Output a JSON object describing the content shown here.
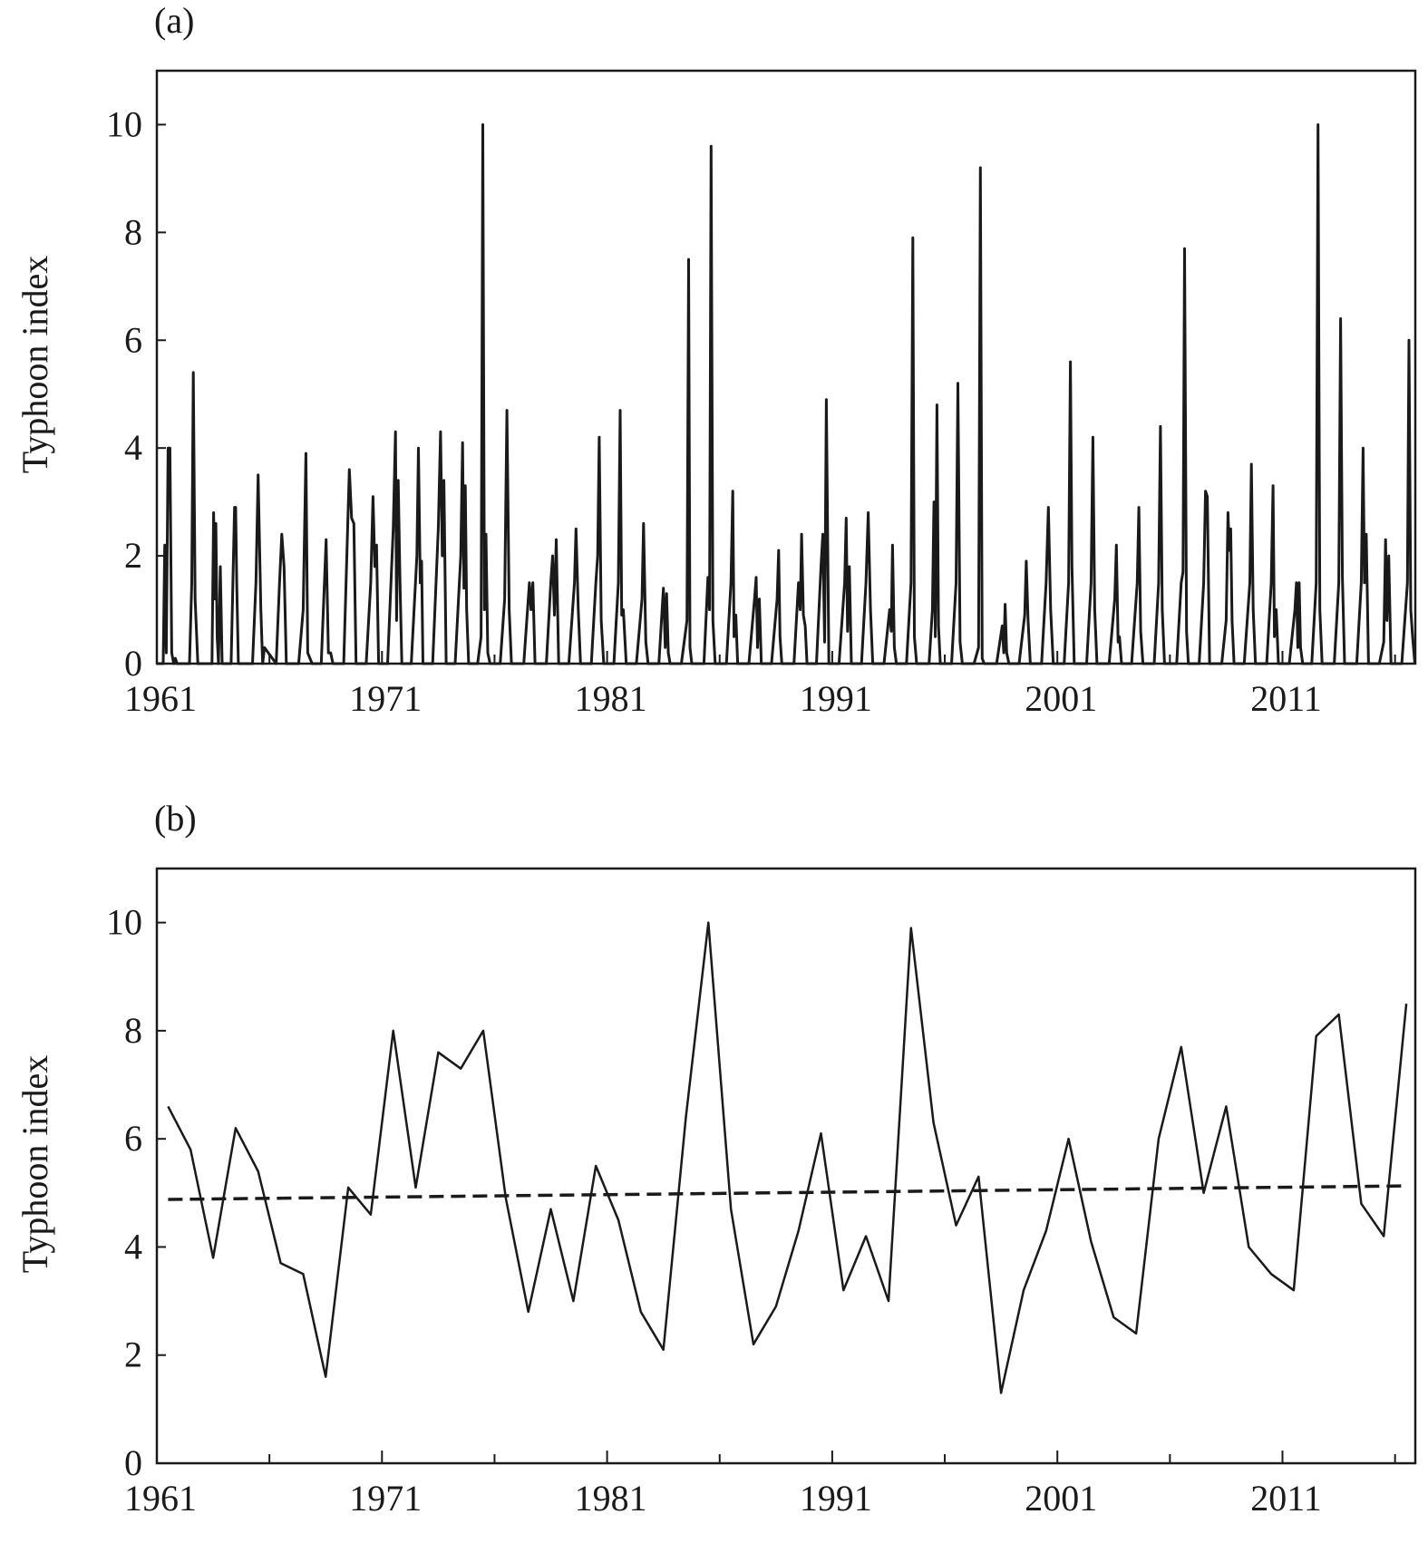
{
  "chart_data": [
    {
      "type": "line",
      "panel_label": "(a)",
      "title": "",
      "xlabel": "",
      "ylabel": "Typhoon index",
      "x_tick_labels": [
        "1961",
        "1971",
        "1981",
        "1991",
        "2001",
        "2011"
      ],
      "x_tick_values": [
        1961,
        1971,
        1981,
        1991,
        2001,
        2011
      ],
      "y_tick_labels": [
        "0",
        "2",
        "4",
        "6",
        "8",
        "10"
      ],
      "y_tick_values": [
        0,
        2,
        4,
        6,
        8,
        10
      ],
      "xlim": [
        1961,
        2016.9
      ],
      "ylim": [
        0,
        11
      ],
      "grid": false,
      "series": [
        {
          "name": "Monthly typhoon index",
          "style": "solid",
          "x": [
            1961.0,
            1961.28,
            1961.35,
            1961.42,
            1961.5,
            1961.58,
            1961.66,
            1961.75,
            1961.82,
            1961.9,
            1962.45,
            1962.55,
            1962.62,
            1962.7,
            1962.82,
            1962.9,
            1963.45,
            1963.52,
            1963.58,
            1963.62,
            1963.68,
            1963.74,
            1963.82,
            1963.9,
            1964.25,
            1964.3,
            1964.45,
            1964.5,
            1964.55,
            1964.62,
            1964.72,
            1964.8,
            1965.25,
            1965.4,
            1965.5,
            1965.62,
            1965.7,
            1965.78,
            1966.3,
            1966.45,
            1966.55,
            1966.65,
            1966.75,
            1966.85,
            1967.3,
            1967.5,
            1967.62,
            1967.7,
            1967.8,
            1967.9,
            1968.3,
            1968.52,
            1968.62,
            1968.72,
            1968.82,
            1968.92,
            1969.3,
            1969.55,
            1969.65,
            1969.75,
            1969.85,
            1970.3,
            1970.5,
            1970.6,
            1970.68,
            1970.76,
            1970.85,
            1971.25,
            1971.5,
            1971.6,
            1971.65,
            1971.72,
            1971.8,
            1971.88,
            1972.3,
            1972.55,
            1972.62,
            1972.7,
            1972.76,
            1972.82,
            1972.9,
            1973.25,
            1973.5,
            1973.6,
            1973.68,
            1973.75,
            1973.85,
            1974.25,
            1974.5,
            1974.58,
            1974.64,
            1974.7,
            1974.76,
            1974.85,
            1975.25,
            1975.4,
            1975.48,
            1975.55,
            1975.62,
            1975.7,
            1975.8,
            1976.25,
            1976.45,
            1976.55,
            1976.65,
            1976.75,
            1977.3,
            1977.55,
            1977.62,
            1977.7,
            1977.8,
            1978.3,
            1978.5,
            1978.58,
            1978.66,
            1978.74,
            1978.85,
            1979.3,
            1979.55,
            1979.62,
            1979.72,
            1979.82,
            1980.3,
            1980.5,
            1980.58,
            1980.65,
            1980.74,
            1980.85,
            1981.3,
            1981.5,
            1981.58,
            1981.65,
            1981.72,
            1981.85,
            1982.3,
            1982.55,
            1982.62,
            1982.72,
            1982.82,
            1983.3,
            1983.5,
            1983.58,
            1983.64,
            1983.72,
            1983.8,
            1984.3,
            1984.55,
            1984.62,
            1984.68,
            1984.76,
            1984.85,
            1985.3,
            1985.48,
            1985.55,
            1985.62,
            1985.7,
            1985.8,
            1986.3,
            1986.5,
            1986.58,
            1986.64,
            1986.72,
            1986.8,
            1986.88,
            1987.3,
            1987.55,
            1987.62,
            1987.68,
            1987.76,
            1987.85,
            1988.3,
            1988.55,
            1988.62,
            1988.68,
            1988.76,
            1988.85,
            1989.3,
            1989.5,
            1989.58,
            1989.64,
            1989.72,
            1989.8,
            1989.88,
            1990.3,
            1990.5,
            1990.58,
            1990.66,
            1990.74,
            1990.85,
            1991.3,
            1991.55,
            1991.62,
            1991.68,
            1991.76,
            1991.85,
            1992.3,
            1992.5,
            1992.6,
            1992.7,
            1992.8,
            1993.3,
            1993.55,
            1993.62,
            1993.68,
            1993.76,
            1993.85,
            1994.3,
            1994.5,
            1994.58,
            1994.65,
            1994.75,
            1995.3,
            1995.45,
            1995.52,
            1995.58,
            1995.65,
            1995.72,
            1995.8,
            1996.3,
            1996.5,
            1996.58,
            1996.68,
            1996.78,
            1997.3,
            1997.5,
            1997.58,
            1997.66,
            1997.75,
            1998.3,
            1998.55,
            1998.62,
            1998.68,
            1998.75,
            1998.85,
            1999.3,
            1999.55,
            1999.62,
            1999.7,
            1999.8,
            2000.3,
            2000.5,
            2000.6,
            2000.7,
            2000.82,
            2001.3,
            2001.5,
            2001.58,
            2001.65,
            2001.75,
            2002.3,
            2002.5,
            2002.58,
            2002.66,
            2002.76,
            2003.3,
            2003.55,
            2003.62,
            2003.7,
            2003.76,
            2003.85,
            2004.3,
            2004.55,
            2004.62,
            2004.7,
            2004.8,
            2005.3,
            2005.5,
            2005.58,
            2005.66,
            2005.76,
            2006.3,
            2006.5,
            2006.58,
            2006.65,
            2006.74,
            2006.82,
            2007.3,
            2007.5,
            2007.58,
            2007.66,
            2007.76,
            2008.3,
            2008.5,
            2008.58,
            2008.64,
            2008.7,
            2008.76,
            2008.85,
            2009.3,
            2009.55,
            2009.62,
            2009.7,
            2009.8,
            2010.3,
            2010.5,
            2010.58,
            2010.64,
            2010.72,
            2010.82,
            2011.3,
            2011.55,
            2011.62,
            2011.68,
            2011.74,
            2011.8,
            2011.9,
            2012.3,
            2012.5,
            2012.58,
            2012.66,
            2012.76,
            2013.3,
            2013.5,
            2013.58,
            2013.66,
            2013.76,
            2014.3,
            2014.5,
            2014.58,
            2014.64,
            2014.72,
            2014.82,
            2015.3,
            2015.5,
            2015.58,
            2015.64,
            2015.72,
            2015.82,
            2016.3,
            2016.55,
            2016.62,
            2016.7,
            2016.78,
            2016.88
          ],
          "y": [
            0,
            0,
            2.2,
            0.2,
            4.0,
            4.0,
            0.2,
            0,
            0.1,
            0,
            0,
            1.5,
            5.4,
            1.2,
            0,
            0,
            0,
            2.8,
            1.2,
            2.6,
            0.5,
            0,
            1.8,
            0,
            0,
            0,
            2.9,
            2.9,
            1.5,
            0,
            0,
            0,
            0,
            1.5,
            3.5,
            1.0,
            0,
            0.3,
            0,
            1.5,
            2.4,
            1.8,
            0,
            0,
            0,
            1.0,
            3.9,
            0.2,
            0.1,
            0,
            0,
            2.3,
            0.2,
            0.2,
            0,
            0,
            0,
            3.6,
            2.7,
            2.6,
            0,
            0,
            1.5,
            3.1,
            1.8,
            2.2,
            0,
            0,
            2.5,
            4.3,
            0.8,
            3.4,
            1.5,
            0,
            0,
            2.0,
            4.0,
            1.5,
            1.9,
            0,
            0,
            0,
            2.5,
            4.3,
            2.0,
            3.4,
            0,
            0,
            2.0,
            4.1,
            1.4,
            3.3,
            1.0,
            0,
            0,
            0.5,
            10.0,
            1.0,
            2.4,
            0.2,
            0,
            0,
            1.2,
            4.7,
            1.0,
            0,
            0,
            1.5,
            1.0,
            1.5,
            0,
            0,
            1.5,
            2.0,
            0.9,
            2.3,
            0,
            0,
            1.5,
            2.5,
            1.0,
            0,
            0,
            1.5,
            2.0,
            4.2,
            0.8,
            0,
            0,
            1.5,
            4.7,
            0.9,
            1.0,
            0,
            0,
            1.2,
            2.6,
            0.4,
            0,
            0,
            1.4,
            0.3,
            1.3,
            0.2,
            0,
            0,
            0.8,
            7.5,
            0.3,
            0,
            0,
            0,
            1.6,
            1.0,
            9.6,
            0.8,
            0,
            0,
            1.5,
            3.2,
            0.5,
            0.9,
            0,
            0,
            0,
            1.2,
            1.6,
            0.3,
            1.2,
            0,
            0,
            1.2,
            2.1,
            0.5,
            0,
            0,
            0,
            1.5,
            1.0,
            2.4,
            0.9,
            0.7,
            0,
            0,
            1.8,
            2.4,
            0.4,
            4.9,
            0,
            0,
            1.5,
            2.7,
            0.6,
            1.8,
            0,
            0,
            1.5,
            2.8,
            1.0,
            0,
            0,
            1.0,
            0.6,
            2.2,
            0.3,
            0,
            0,
            1.5,
            7.9,
            0.5,
            0,
            0,
            1.0,
            3.0,
            0.5,
            4.8,
            0.7,
            0,
            0,
            1.5,
            5.2,
            0.4,
            0,
            0,
            0.3,
            9.2,
            0.1,
            0,
            0,
            0.7,
            0.2,
            1.1,
            0.2,
            0,
            0,
            0.9,
            1.9,
            0.8,
            0,
            0,
            1.5,
            2.9,
            1.0,
            0,
            0,
            1.5,
            5.6,
            1.8,
            0,
            0,
            1.5,
            4.2,
            1.0,
            0,
            0,
            1.2,
            2.2,
            0.4,
            0.5,
            0,
            0,
            1.5,
            2.9,
            0.6,
            0,
            0,
            1.5,
            4.4,
            1.0,
            0,
            0,
            1.5,
            1.7,
            7.7,
            0.6,
            0,
            0,
            1.5,
            3.2,
            3.1,
            0,
            0,
            0.8,
            2.8,
            2.1,
            2.5,
            0.8,
            0,
            0,
            1.5,
            3.7,
            1.0,
            0,
            0,
            1.5,
            3.3,
            0.5,
            1.0,
            0,
            0,
            1.0,
            1.5,
            0.3,
            1.5,
            0.3,
            0,
            0,
            1.5,
            10.0,
            1.0,
            0,
            0,
            1.5,
            6.4,
            1.6,
            0,
            0,
            1.5,
            4.0,
            1.5,
            2.4,
            0,
            0,
            0.4,
            2.3,
            0.8,
            2.0,
            0,
            0,
            1.5,
            6.0,
            1.0,
            0.5,
            0
          ]
        }
      ]
    },
    {
      "type": "line",
      "panel_label": "(b)",
      "title": "",
      "xlabel": "",
      "ylabel": "Typhoon index",
      "x_tick_labels": [
        "1961",
        "1971",
        "1981",
        "1991",
        "2001",
        "2011"
      ],
      "x_tick_values": [
        1961,
        1971,
        1981,
        1991,
        2001,
        2011
      ],
      "y_tick_labels": [
        "0",
        "2",
        "4",
        "6",
        "8",
        "10"
      ],
      "y_tick_values": [
        0,
        2,
        4,
        6,
        8,
        10
      ],
      "xlim": [
        1961,
        2016.9
      ],
      "ylim": [
        0,
        11
      ],
      "grid": false,
      "series": [
        {
          "name": "Annual typhoon index",
          "style": "solid",
          "x": [
            1961.5,
            1962.5,
            1963.5,
            1964.5,
            1965.5,
            1966.5,
            1967.5,
            1968.5,
            1969.5,
            1970.5,
            1971.5,
            1972.5,
            1973.5,
            1974.5,
            1975.5,
            1976.5,
            1977.5,
            1978.5,
            1979.5,
            1980.5,
            1981.5,
            1982.5,
            1983.5,
            1984.5,
            1985.5,
            1986.5,
            1987.5,
            1988.5,
            1989.5,
            1990.5,
            1991.5,
            1992.5,
            1993.5,
            1994.5,
            1995.5,
            1996.5,
            1997.5,
            1998.5,
            1999.5,
            2000.5,
            2001.5,
            2002.5,
            2003.5,
            2004.5,
            2005.5,
            2006.5,
            2007.5,
            2008.5,
            2009.5,
            2010.5,
            2011.5,
            2012.5,
            2013.5,
            2014.5,
            2015.5,
            2016.5
          ],
          "y": [
            6.6,
            5.8,
            3.8,
            6.2,
            5.4,
            3.7,
            3.5,
            1.6,
            5.1,
            4.6,
            8.0,
            5.1,
            7.6,
            7.3,
            8.0,
            4.9,
            2.8,
            4.7,
            3.0,
            5.5,
            4.5,
            2.8,
            2.1,
            6.4,
            10.0,
            4.7,
            2.2,
            2.9,
            4.3,
            6.1,
            3.2,
            4.2,
            3.0,
            9.9,
            6.3,
            4.4,
            5.3,
            1.3,
            3.2,
            4.3,
            6.0,
            4.1,
            2.7,
            2.4,
            6.0,
            7.7,
            5.0,
            6.6,
            4.0,
            3.5,
            3.2,
            7.9,
            8.3,
            4.8,
            4.2,
            8.5
          ]
        },
        {
          "name": "Linear trend",
          "style": "dashed",
          "x": [
            1961.5,
            2016.5
          ],
          "y": [
            4.88,
            5.13
          ]
        }
      ]
    }
  ]
}
